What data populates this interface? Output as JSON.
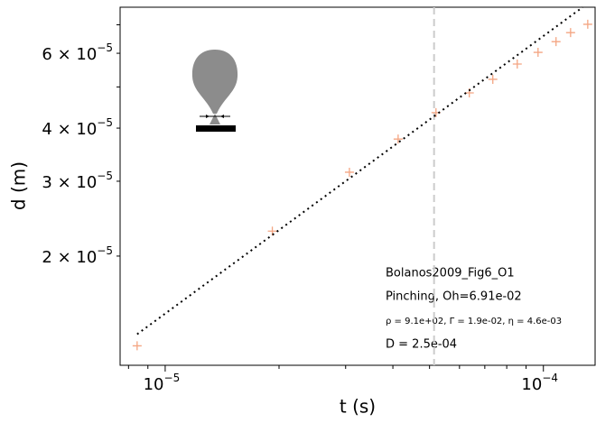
{
  "chart_data": {
    "type": "scatter",
    "xlabel": "t (s)",
    "ylabel": "d (m)",
    "xscale": "log",
    "yscale": "log",
    "xlim": [
      7.6e-06,
      0.000137
    ],
    "ylim": [
      1.107e-05,
      7.7e-05
    ],
    "xticks": [
      {
        "value": 1e-05,
        "label": "10−5"
      },
      {
        "value": 0.0001,
        "label": "10−4"
      }
    ],
    "xminor_ticks": [
      8e-06,
      9e-06,
      2e-05,
      3e-05,
      4e-05,
      5e-05,
      6e-05,
      7e-05,
      8e-05,
      9e-05
    ],
    "yticks": [
      {
        "value": 2e-05,
        "label": "2 × 10−5"
      },
      {
        "value": 3e-05,
        "label": "3 × 10−5"
      },
      {
        "value": 4e-05,
        "label": "4 × 10−5"
      },
      {
        "value": 6e-05,
        "label": "6 × 10−5"
      }
    ],
    "yminor_ticks": [
      5e-05,
      7e-05
    ],
    "vline": 5.14e-05,
    "series": [
      {
        "style": "markers",
        "marker": "+",
        "color": "#f4a582",
        "x": [
          8.43e-06,
          1.92e-05,
          3.07e-05,
          4.13e-05,
          5.2e-05,
          6.37e-05,
          7.35e-05,
          8.53e-05,
          9.68e-05,
          0.000108,
          0.000118,
          0.000131
        ],
        "values": [
          1.23e-05,
          2.29e-05,
          3.15e-05,
          3.77e-05,
          4.35e-05,
          4.84e-05,
          5.21e-05,
          5.66e-05,
          6.03e-05,
          6.39e-05,
          6.71e-05,
          7.02e-05
        ]
      },
      {
        "style": "dotted-line",
        "color": "#000000",
        "x": [
          8.43e-06,
          0.000127
        ],
        "values": [
          1.31e-05,
          7.7e-05
        ]
      }
    ],
    "annotations": [
      "Bolanos2009_Fig6_O1",
      "Pinching, Oh=6.91e-02",
      "ρ = 9.1e+02, Γ = 1.9e-02, η = 4.6e-03",
      "D = 2.5e-04"
    ]
  }
}
